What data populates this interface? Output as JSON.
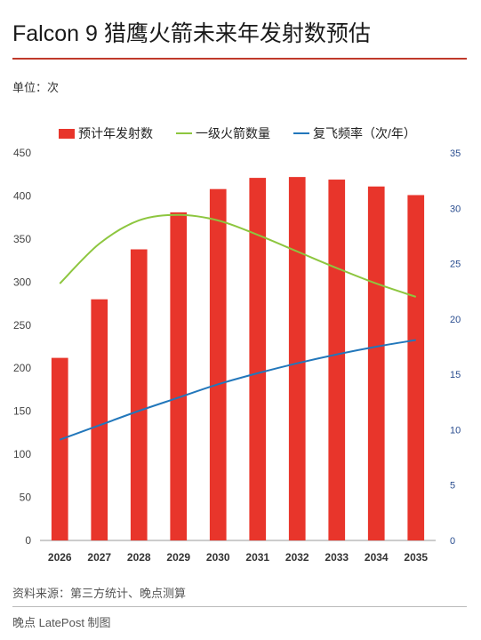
{
  "header": {
    "title": "Falcon 9 猎鹰火箭未来年发射数预估",
    "unit": "单位：次"
  },
  "footer": {
    "source": "资料来源：第三方统计、晚点测算",
    "credit": "晚点 LatePost 制图"
  },
  "colors": {
    "bar": "#e8352b",
    "line_green": "#8dc63f",
    "line_blue": "#2277bb",
    "accent_rule": "#c0392b"
  },
  "chart_data": {
    "type": "bar",
    "categories": [
      "2026",
      "2027",
      "2028",
      "2029",
      "2030",
      "2031",
      "2032",
      "2033",
      "2034",
      "2035"
    ],
    "series": [
      {
        "name": "预计年发射数",
        "type": "bar",
        "axis": "left",
        "values": [
          212,
          280,
          338,
          381,
          408,
          421,
          422,
          419,
          411,
          401
        ]
      },
      {
        "name": "一级火箭数量",
        "type": "line",
        "axis": "right",
        "values": [
          23.2,
          26.8,
          28.9,
          29.4,
          28.9,
          27.6,
          26.1,
          24.6,
          23.2,
          22
        ]
      },
      {
        "name": "复飞频率（次/年）",
        "type": "line",
        "axis": "right",
        "values": [
          9.1,
          10.4,
          11.7,
          12.9,
          14.1,
          15.1,
          16.0,
          16.8,
          17.5,
          18.1
        ]
      }
    ],
    "ylim_left": [
      0,
      450
    ],
    "yticks_left": [
      0,
      50,
      100,
      150,
      200,
      250,
      300,
      350,
      400,
      450
    ],
    "ylim_right": [
      0,
      35
    ],
    "yticks_right": [
      0,
      5,
      10,
      15,
      20,
      25,
      30,
      35
    ],
    "legend": "top",
    "grid": false
  }
}
